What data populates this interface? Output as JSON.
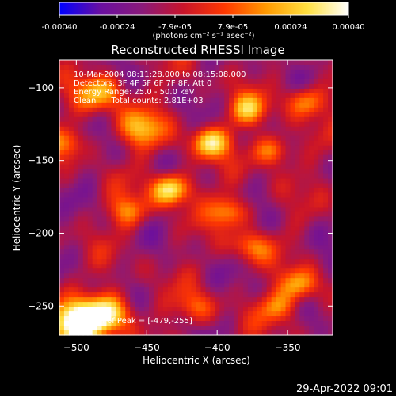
{
  "chart_data": {
    "type": "heatmap",
    "title": "Reconstructed RHESSI Image",
    "xlabel": "Heliocentric X (arcsec)",
    "ylabel": "Heliocentric Y (arcsec)",
    "xlim": [
      -512,
      -318
    ],
    "ylim": [
      -270,
      -81
    ],
    "x_ticks": [
      -500,
      -450,
      -400,
      -350
    ],
    "y_ticks": [
      -100,
      -150,
      -200,
      -250
    ],
    "colorbar": {
      "min": -0.0004,
      "max": 0.0004,
      "ticks": [
        "-0.00040",
        "-0.00024",
        "-7.9e-05",
        "7.9e-05",
        "0.00024",
        "0.00040"
      ],
      "unit_label": "(photons cm⁻² s⁻¹ asec⁻²)",
      "colormap": [
        "#0000ff",
        "#6a0fa0",
        "#8a1a7a",
        "#c8142a",
        "#ff3800",
        "#ff9900",
        "#ffe040",
        "#ffffff"
      ]
    },
    "info_lines": [
      "10-Mar-2004 08:11:28.000 to 08:15:08.000",
      "Detectors: 3F 4F 5F 6F 7F 8F, Att 0",
      "Energy Range: 25.0 - 50.0 keV",
      "Clean      Total counts: 2.81E+03"
    ],
    "peak_label": "Position of Peak = [-479,-255]",
    "peak": [
      -479,
      -255
    ],
    "grid": false
  },
  "timestamp": "29-Apr-2022 09:01"
}
